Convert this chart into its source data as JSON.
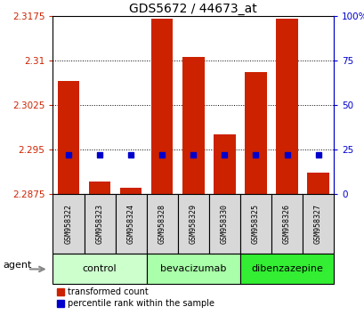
{
  "title": "GDS5672 / 44673_at",
  "samples": [
    "GSM958322",
    "GSM958323",
    "GSM958324",
    "GSM958328",
    "GSM958329",
    "GSM958330",
    "GSM958325",
    "GSM958326",
    "GSM958327"
  ],
  "groups": [
    {
      "label": "control",
      "indices": [
        0,
        1,
        2
      ],
      "color": "#ccffcc"
    },
    {
      "label": "bevacizumab",
      "indices": [
        3,
        4,
        5
      ],
      "color": "#aaffaa"
    },
    {
      "label": "dibenzazepine",
      "indices": [
        6,
        7,
        8
      ],
      "color": "#33ee33"
    }
  ],
  "red_values": [
    2.3065,
    2.2895,
    2.2885,
    2.317,
    2.3105,
    2.2975,
    2.308,
    2.317,
    2.291
  ],
  "blue_values_pct": [
    22,
    22,
    22,
    22,
    22,
    22,
    22,
    22,
    22
  ],
  "ymin": 2.2875,
  "ymax": 2.3175,
  "yticks": [
    2.2875,
    2.295,
    2.3025,
    2.31,
    2.3175
  ],
  "ytick_labels": [
    "2.2875",
    "2.295",
    "2.3025",
    "2.31",
    "2.3175"
  ],
  "right_yticks": [
    0,
    25,
    50,
    75,
    100
  ],
  "right_ytick_labels": [
    "0",
    "25",
    "50",
    "75",
    "100%"
  ],
  "bar_color": "#cc2200",
  "blue_color": "#0000cc",
  "left_tick_color": "#cc2200",
  "right_tick_color": "#0000cc",
  "grid_color": "#000000",
  "agent_label": "agent",
  "legend_red": "transformed count",
  "legend_blue": "percentile rank within the sample",
  "bar_width": 0.7,
  "title_fontsize": 10,
  "tick_fontsize": 7.5,
  "sample_fontsize": 6,
  "group_fontsize": 8,
  "legend_fontsize": 7,
  "chart_bg": "#ffffff",
  "sample_box_color": "#d8d8d8",
  "figure_bg": "#ffffff"
}
